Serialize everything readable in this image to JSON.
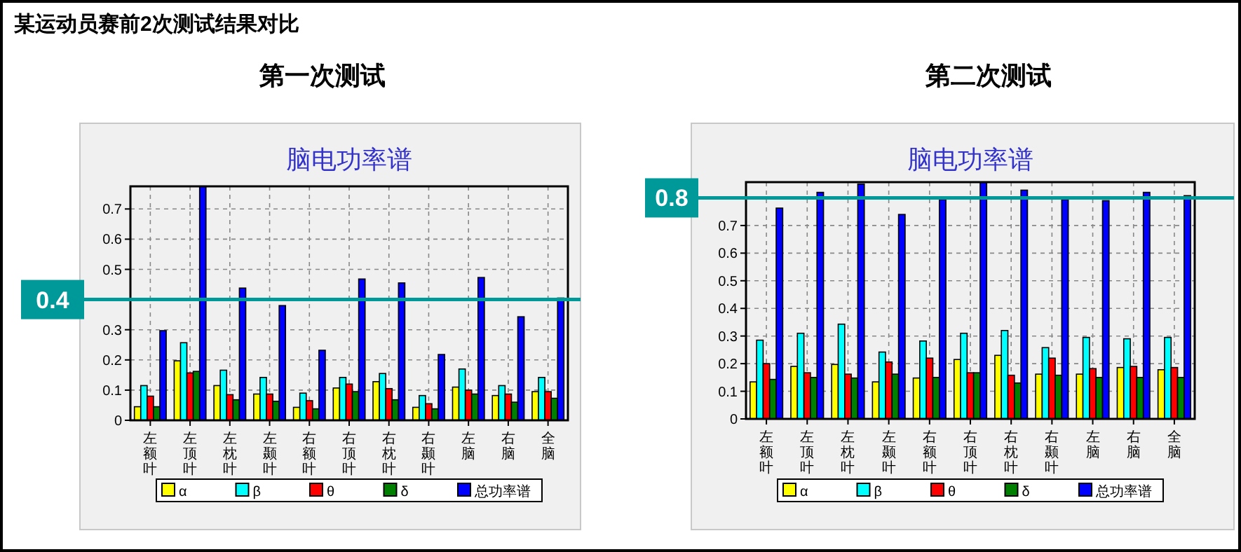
{
  "chart_data": [
    {
      "type": "bar",
      "title": "第一次测试",
      "subtitle": "脑电功率谱",
      "annotations": [
        "某运动员赛前2次测试结果对比"
      ],
      "categories": [
        "左额叶",
        "左顶叶",
        "左枕叶",
        "左颞叶",
        "右额叶",
        "右顶叶",
        "右枕叶",
        "右颞叶",
        "左脑",
        "右脑",
        "全脑"
      ],
      "series": [
        {
          "name": "α",
          "color": "#ffff00",
          "values": [
            0.045,
            0.197,
            0.115,
            0.087,
            0.043,
            0.107,
            0.128,
            0.043,
            0.11,
            0.082,
            0.095
          ]
        },
        {
          "name": "β",
          "color": "#00ffff",
          "values": [
            0.115,
            0.257,
            0.166,
            0.142,
            0.09,
            0.142,
            0.155,
            0.082,
            0.17,
            0.115,
            0.142
          ]
        },
        {
          "name": "θ",
          "color": "#ff0000",
          "values": [
            0.08,
            0.157,
            0.085,
            0.087,
            0.065,
            0.12,
            0.105,
            0.055,
            0.1,
            0.087,
            0.095
          ]
        },
        {
          "name": "δ",
          "color": "#008000",
          "values": [
            0.045,
            0.162,
            0.068,
            0.063,
            0.038,
            0.095,
            0.068,
            0.038,
            0.087,
            0.06,
            0.073
          ]
        },
        {
          "name": "总功率谱",
          "color": "#0000ff",
          "values": [
            0.297,
            0.775,
            0.438,
            0.38,
            0.232,
            0.468,
            0.455,
            0.218,
            0.473,
            0.343,
            0.405
          ]
        }
      ],
      "ylim": [
        0,
        0.775
      ],
      "yticks": [
        0,
        0.1,
        0.2,
        0.3,
        {
          "value": 0.4,
          "label": null
        },
        0.5,
        0.6,
        0.7
      ],
      "grid": true,
      "legend": "bottom",
      "ref_lines": [
        {
          "axis": "y",
          "value": 0.4,
          "label": "0.4",
          "color": "#009999"
        }
      ]
    },
    {
      "type": "bar",
      "title": "第二次测试",
      "subtitle": "脑电功率谱",
      "categories": [
        "左额叶",
        "左顶叶",
        "左枕叶",
        "左颞叶",
        "右额叶",
        "右顶叶",
        "右枕叶",
        "右颞叶",
        "左脑",
        "右脑",
        "全脑"
      ],
      "series": [
        {
          "name": "α",
          "color": "#ffff00",
          "values": [
            0.134,
            0.19,
            0.197,
            0.134,
            0.148,
            0.215,
            0.23,
            0.162,
            0.162,
            0.186,
            0.178
          ]
        },
        {
          "name": "β",
          "color": "#00ffff",
          "values": [
            0.285,
            0.31,
            0.343,
            0.242,
            0.282,
            0.31,
            0.32,
            0.258,
            0.295,
            0.29,
            0.295
          ]
        },
        {
          "name": "θ",
          "color": "#ff0000",
          "values": [
            0.2,
            0.167,
            0.162,
            0.206,
            0.22,
            0.167,
            0.158,
            0.22,
            0.182,
            0.19,
            0.186
          ]
        },
        {
          "name": "δ",
          "color": "#008000",
          "values": [
            0.143,
            0.15,
            0.148,
            0.162,
            0.15,
            0.167,
            0.13,
            0.158,
            0.15,
            0.15,
            0.15
          ]
        },
        {
          "name": "总功率谱",
          "color": "#0000ff",
          "values": [
            0.763,
            0.82,
            0.85,
            0.74,
            0.794,
            0.857,
            0.828,
            0.794,
            0.79,
            0.82,
            0.808
          ]
        }
      ],
      "ylim": [
        0,
        0.857
      ],
      "yticks": [
        0,
        0.1,
        0.2,
        0.3,
        0.4,
        0.5,
        0.6,
        0.7,
        {
          "value": 0.8,
          "label": null
        }
      ],
      "grid": true,
      "legend": "bottom",
      "ref_lines": [
        {
          "axis": "y",
          "value": 0.8,
          "label": "0.8",
          "color": "#009999"
        }
      ]
    }
  ]
}
